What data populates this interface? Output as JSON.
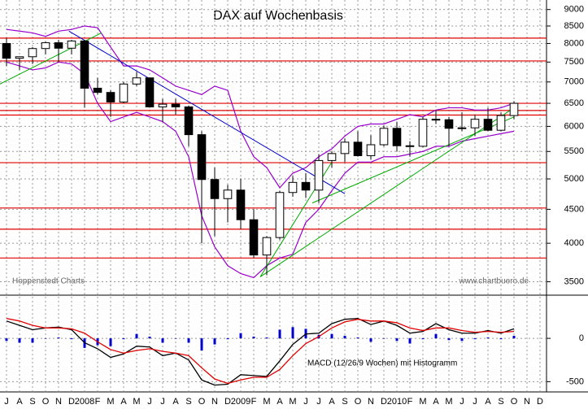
{
  "chart_data": [
    {
      "type": "candlestick",
      "title": "DAX auf Wochenbasis",
      "annotations": [
        "Hoppenstedt Charts",
        "www.chartbuero.de"
      ],
      "open": [
        8000,
        7600,
        7640,
        7860,
        8020,
        7870,
        8070,
        6850,
        6750,
        6530,
        6950,
        7100,
        6420,
        6480,
        6420,
        5830,
        4990,
        4670,
        4810,
        4340,
        3840,
        4080,
        4770,
        4940,
        4810,
        5330,
        5460,
        5680,
        5420,
        5630,
        5960,
        5610,
        5600,
        6150,
        6140,
        5960,
        5970,
        6150,
        5920,
        6230,
        null,
        null
      ],
      "high": [
        8150,
        7650,
        7900,
        8050,
        8100,
        8100,
        8100,
        7100,
        6800,
        7000,
        7250,
        7100,
        6600,
        6600,
        6450,
        5900,
        5200,
        4900,
        5000,
        4500,
        4100,
        4800,
        5050,
        5100,
        5450,
        5500,
        5750,
        5900,
        5820,
        6020,
        6100,
        5700,
        6200,
        6350,
        6200,
        6300,
        6250,
        6400,
        6300,
        6550,
        null,
        null
      ],
      "low": [
        7400,
        7300,
        7450,
        7700,
        7500,
        7700,
        6400,
        6700,
        6200,
        6500,
        6900,
        6400,
        6100,
        6250,
        5600,
        4000,
        4100,
        4300,
        4200,
        3800,
        3580,
        4050,
        4700,
        4680,
        4600,
        5200,
        5300,
        5400,
        5350,
        5600,
        5500,
        5400,
        5580,
        6050,
        5600,
        5900,
        5800,
        5900,
        5900,
        6150,
        null,
        null
      ],
      "close": [
        7600,
        7640,
        7860,
        8020,
        7870,
        8070,
        6850,
        6750,
        6530,
        6950,
        7100,
        6420,
        6480,
        6420,
        5830,
        4990,
        4670,
        4810,
        4340,
        3840,
        4080,
        4770,
        4940,
        4810,
        5330,
        5460,
        5680,
        5420,
        5630,
        5960,
        5610,
        5600,
        6150,
        6140,
        5960,
        5970,
        6150,
        5920,
        6230,
        6500,
        null,
        null
      ],
      "color_up": "#ffffff",
      "color_down": "#000000",
      "series": [
        {
          "color": "#9900cc",
          "values": [
            8400,
            8350,
            8300,
            8200,
            8350,
            8400,
            8500,
            8450,
            7900,
            7400,
            7400,
            7300,
            7100,
            6900,
            6800,
            6700,
            6900,
            6800,
            5900,
            5400,
            5200,
            4850,
            5100,
            5200,
            5400,
            5550,
            5800,
            6000,
            6050,
            6050,
            6150,
            6250,
            6200,
            6350,
            6400,
            6400,
            6350,
            6350,
            6400,
            6500,
            null,
            null
          ]
        },
        {
          "color": "#9900cc",
          "values": [
            7500,
            7400,
            7300,
            7350,
            7500,
            7450,
            7200,
            6500,
            6100,
            6200,
            6300,
            6200,
            6100,
            5900,
            5400,
            4400,
            3950,
            3700,
            3600,
            3550,
            3700,
            3800,
            3850,
            4300,
            4500,
            4800,
            5100,
            5300,
            5300,
            5400,
            5400,
            5450,
            5500,
            5600,
            5600,
            5700,
            5750,
            5800,
            5850,
            5900,
            null,
            null
          ]
        }
      ],
      "hlines": {
        "color": "#e00000",
        "values": [
          8150,
          7530,
          6500,
          6340,
          6240,
          5290,
          4520,
          4200,
          3800
        ]
      },
      "trendlines": [
        {
          "color": "#0000cc",
          "points": [
            [
              5.3,
              8350
            ],
            [
              26.5,
              4750
            ]
          ]
        },
        {
          "color": "#00aa00",
          "points": [
            [
              0,
              6950
            ],
            [
              7.8,
              8300
            ]
          ]
        },
        {
          "color": "#00aa00",
          "points": [
            [
              20,
              3560
            ],
            [
              39.5,
              6400
            ]
          ]
        },
        {
          "color": "#00aa00",
          "points": [
            [
              20,
              3560
            ],
            [
              25.5,
              5300
            ]
          ]
        },
        {
          "color": "#00aa00",
          "points": [
            [
              24,
              4600
            ],
            [
              39.5,
              6200
            ]
          ]
        }
      ],
      "ylim": [
        3350,
        9250
      ],
      "yticks": [
        3500,
        4000,
        4500,
        5000,
        5500,
        6000,
        6500,
        7000,
        7500,
        8000,
        8500,
        9000
      ],
      "log_scale": true,
      "grid": true
    },
    {
      "type": "macd",
      "label": "MACD (12/26/9 Wochen) mit Histogramm",
      "categories": [
        "J",
        "A",
        "S",
        "O",
        "N",
        "D",
        "2008",
        "F",
        "M",
        "A",
        "M",
        "J",
        "J",
        "A",
        "S",
        "O",
        "N",
        "D",
        "2009",
        "F",
        "M",
        "A",
        "M",
        "J",
        "J",
        "A",
        "S",
        "O",
        "N",
        "D",
        "2010",
        "F",
        "M",
        "A",
        "M",
        "J",
        "J",
        "A",
        "S",
        "O",
        "N",
        "D"
      ],
      "series": [
        {
          "color": "#000000",
          "values": [
            200,
            150,
            100,
            120,
            130,
            100,
            -50,
            -120,
            -220,
            -180,
            -90,
            -100,
            -200,
            -170,
            -250,
            -480,
            -540,
            -530,
            -420,
            -430,
            -440,
            -260,
            -70,
            50,
            60,
            170,
            220,
            230,
            160,
            200,
            150,
            60,
            80,
            170,
            100,
            60,
            60,
            90,
            60,
            110,
            null,
            null
          ]
        },
        {
          "color": "#e00000",
          "values": [
            230,
            200,
            150,
            120,
            120,
            110,
            60,
            -40,
            -130,
            -170,
            -140,
            -120,
            -150,
            -170,
            -200,
            -340,
            -470,
            -520,
            -480,
            -450,
            -450,
            -360,
            -200,
            -60,
            20,
            120,
            190,
            220,
            200,
            200,
            180,
            120,
            90,
            120,
            120,
            90,
            70,
            80,
            70,
            80,
            null,
            null
          ]
        }
      ],
      "histogram": {
        "color": "#0000cc",
        "values": [
          -30,
          -50,
          -50,
          0,
          10,
          -10,
          -110,
          -80,
          -90,
          -10,
          50,
          20,
          -50,
          0,
          -50,
          -140,
          -70,
          -10,
          60,
          20,
          10,
          100,
          130,
          110,
          40,
          50,
          30,
          10,
          -40,
          0,
          -30,
          -60,
          -10,
          50,
          -20,
          -30,
          -10,
          10,
          -10,
          30,
          null,
          null
        ]
      },
      "ylim": [
        -600,
        480
      ],
      "yticks": [
        0,
        -500
      ],
      "grid": true
    }
  ]
}
